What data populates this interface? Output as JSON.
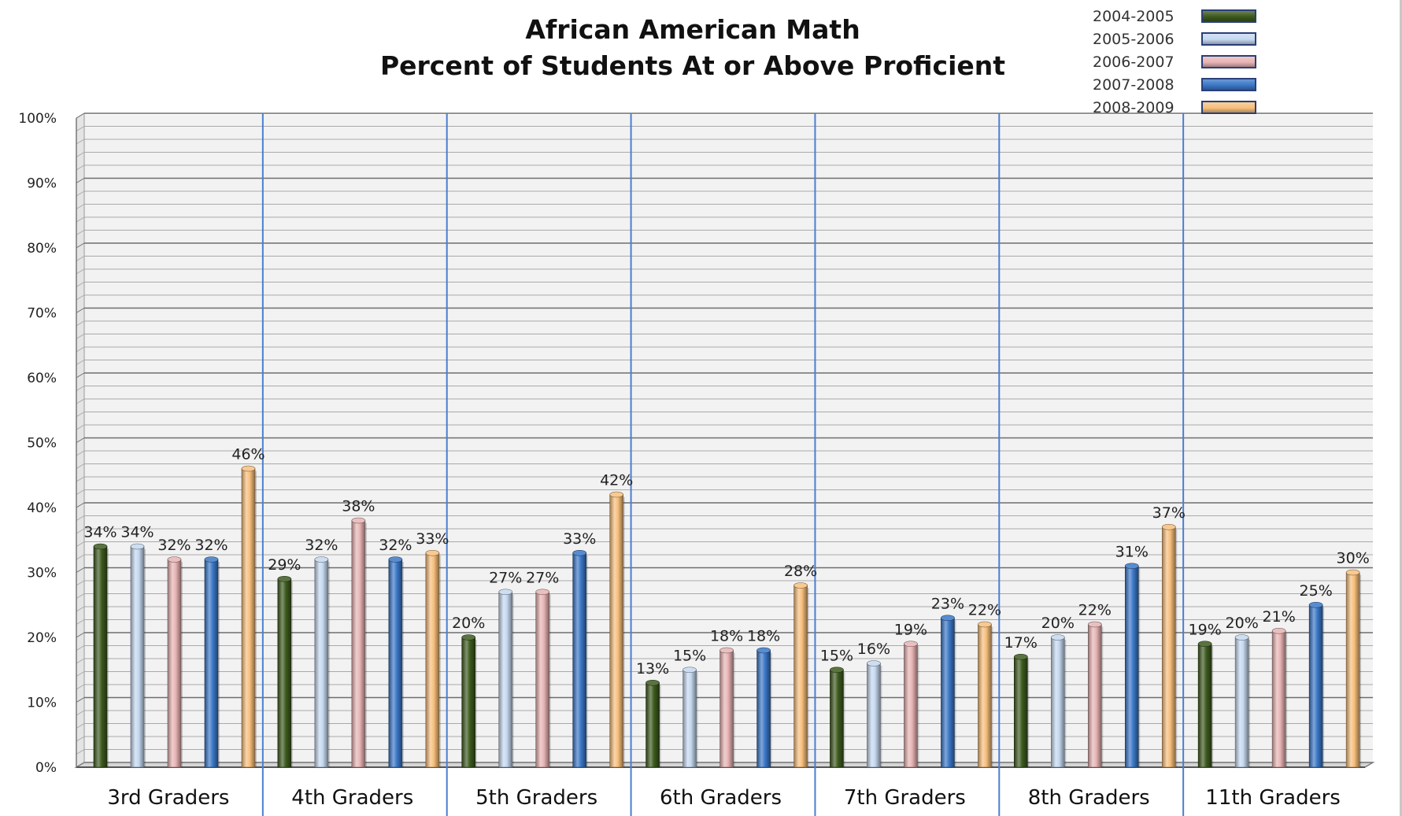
{
  "chart_data": {
    "type": "bar",
    "title": "African American Math",
    "subtitle": "Percent of Students At or Above Proficient",
    "xlabel": "",
    "ylabel": "",
    "ylim": [
      0,
      100
    ],
    "yticks": [
      "0%",
      "10%",
      "20%",
      "30%",
      "40%",
      "50%",
      "60%",
      "70%",
      "80%",
      "90%",
      "100%"
    ],
    "grid": true,
    "legend_position": "top-right",
    "categories": [
      "3rd Graders",
      "4th  Graders",
      "5th Graders",
      "6th Graders",
      "7th Graders",
      "8th Graders",
      "11th Graders"
    ],
    "series": [
      {
        "name": "2004-2005",
        "color": "#3d5a1e",
        "values": [
          34,
          29,
          20,
          13,
          15,
          17,
          19
        ],
        "labels": [
          "34%",
          "29%",
          "20%",
          "13%",
          "15%",
          "17%",
          "19%"
        ]
      },
      {
        "name": "2005-2006",
        "color": "#c5d8f0",
        "values": [
          34,
          32,
          27,
          15,
          16,
          20,
          20
        ],
        "labels": [
          "34%",
          "32%",
          "27%",
          "15%",
          "16%",
          "20%",
          "20%"
        ]
      },
      {
        "name": "2006-2007",
        "color": "#e8b4b4",
        "values": [
          32,
          38,
          27,
          18,
          19,
          22,
          21
        ],
        "labels": [
          "32%",
          "38%",
          "27%",
          "18%",
          "19%",
          "22%",
          "21%"
        ]
      },
      {
        "name": "2007-2008",
        "color": "#3b78c8",
        "values": [
          32,
          32,
          33,
          18,
          23,
          31,
          25
        ],
        "labels": [
          "32%",
          "32%",
          "33%",
          "18%",
          "23%",
          "31%",
          "25%"
        ]
      },
      {
        "name": "2008-2009",
        "color": "#f7bf7c",
        "values": [
          46,
          33,
          42,
          28,
          22,
          37,
          30
        ],
        "labels": [
          "46%",
          "33%",
          "42%",
          "28%",
          "22%",
          "37%",
          "30%"
        ]
      }
    ]
  }
}
